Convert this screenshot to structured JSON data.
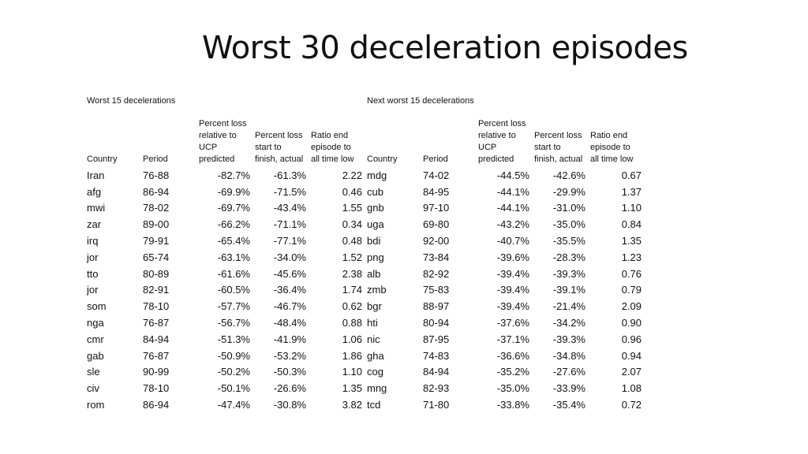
{
  "title": "Worst 30 deceleration episodes",
  "left_section_label": "Worst 15 decelerations",
  "right_section_label": "Next worst 15 decelerations",
  "headers": {
    "country": "Country",
    "period": "Period",
    "pct_loss_ucp": "Percent loss\nrelative to\nUCP\npredicted",
    "pct_loss_actual": "Percent loss\nstart to\nfinish, actual",
    "ratio": "Ratio end\nepisode to\nall time low"
  },
  "left_rows": [
    {
      "country": "Iran",
      "period": "76-88",
      "ucp": "-82.7%",
      "actual": "-61.3%",
      "ratio": "2.22"
    },
    {
      "country": "afg",
      "period": "86-94",
      "ucp": "-69.9%",
      "actual": "-71.5%",
      "ratio": "0.46"
    },
    {
      "country": "mwi",
      "period": "78-02",
      "ucp": "-69.7%",
      "actual": "-43.4%",
      "ratio": "1.55"
    },
    {
      "country": "zar",
      "period": "89-00",
      "ucp": "-66.2%",
      "actual": "-71.1%",
      "ratio": "0.34"
    },
    {
      "country": "irq",
      "period": "79-91",
      "ucp": "-65.4%",
      "actual": "-77.1%",
      "ratio": "0.48"
    },
    {
      "country": "jor",
      "period": "65-74",
      "ucp": "-63.1%",
      "actual": "-34.0%",
      "ratio": "1.52"
    },
    {
      "country": "tto",
      "period": "80-89",
      "ucp": "-61.6%",
      "actual": "-45.6%",
      "ratio": "2.38"
    },
    {
      "country": "jor",
      "period": "82-91",
      "ucp": "-60.5%",
      "actual": "-36.4%",
      "ratio": "1.74"
    },
    {
      "country": "som",
      "period": "78-10",
      "ucp": "-57.7%",
      "actual": "-46.7%",
      "ratio": "0.62"
    },
    {
      "country": "nga",
      "period": "76-87",
      "ucp": "-56.7%",
      "actual": "-48.4%",
      "ratio": "0.88"
    },
    {
      "country": "cmr",
      "period": "84-94",
      "ucp": "-51.3%",
      "actual": "-41.9%",
      "ratio": "1.06"
    },
    {
      "country": "gab",
      "period": "76-87",
      "ucp": "-50.9%",
      "actual": "-53.2%",
      "ratio": "1.86"
    },
    {
      "country": "sle",
      "period": "90-99",
      "ucp": "-50.2%",
      "actual": "-50.3%",
      "ratio": "1.10"
    },
    {
      "country": "civ",
      "period": "78-10",
      "ucp": "-50.1%",
      "actual": "-26.6%",
      "ratio": "1.35"
    },
    {
      "country": "rom",
      "period": "86-94",
      "ucp": "-47.4%",
      "actual": "-30.8%",
      "ratio": "3.82"
    }
  ],
  "right_rows": [
    {
      "country": "mdg",
      "period": "74-02",
      "ucp": "-44.5%",
      "actual": "-42.6%",
      "ratio": "0.67"
    },
    {
      "country": "cub",
      "period": "84-95",
      "ucp": "-44.1%",
      "actual": "-29.9%",
      "ratio": "1.37"
    },
    {
      "country": "gnb",
      "period": "97-10",
      "ucp": "-44.1%",
      "actual": "-31.0%",
      "ratio": "1.10"
    },
    {
      "country": "uga",
      "period": "69-80",
      "ucp": "-43.2%",
      "actual": "-35.0%",
      "ratio": "0.84"
    },
    {
      "country": "bdi",
      "period": "92-00",
      "ucp": "-40.7%",
      "actual": "-35.5%",
      "ratio": "1.35"
    },
    {
      "country": "png",
      "period": "73-84",
      "ucp": "-39.6%",
      "actual": "-28.3%",
      "ratio": "1.23"
    },
    {
      "country": "alb",
      "period": "82-92",
      "ucp": "-39.4%",
      "actual": "-39.3%",
      "ratio": "0.76"
    },
    {
      "country": "zmb",
      "period": "75-83",
      "ucp": "-39.4%",
      "actual": "-39.1%",
      "ratio": "0.79"
    },
    {
      "country": "bgr",
      "period": "88-97",
      "ucp": "-39.4%",
      "actual": "-21.4%",
      "ratio": "2.09"
    },
    {
      "country": "hti",
      "period": "80-94",
      "ucp": "-37.6%",
      "actual": "-34.2%",
      "ratio": "0.90"
    },
    {
      "country": "nic",
      "period": "87-95",
      "ucp": "-37.1%",
      "actual": "-39.3%",
      "ratio": "0.96"
    },
    {
      "country": "gha",
      "period": "74-83",
      "ucp": "-36.6%",
      "actual": "-34.8%",
      "ratio": "0.94"
    },
    {
      "country": "cog",
      "period": "84-94",
      "ucp": "-35.2%",
      "actual": "-27.6%",
      "ratio": "2.07"
    },
    {
      "country": "mng",
      "period": "82-93",
      "ucp": "-35.0%",
      "actual": "-33.9%",
      "ratio": "1.08"
    },
    {
      "country": "tcd",
      "period": "71-80",
      "ucp": "-33.8%",
      "actual": "-35.4%",
      "ratio": "0.72"
    }
  ]
}
